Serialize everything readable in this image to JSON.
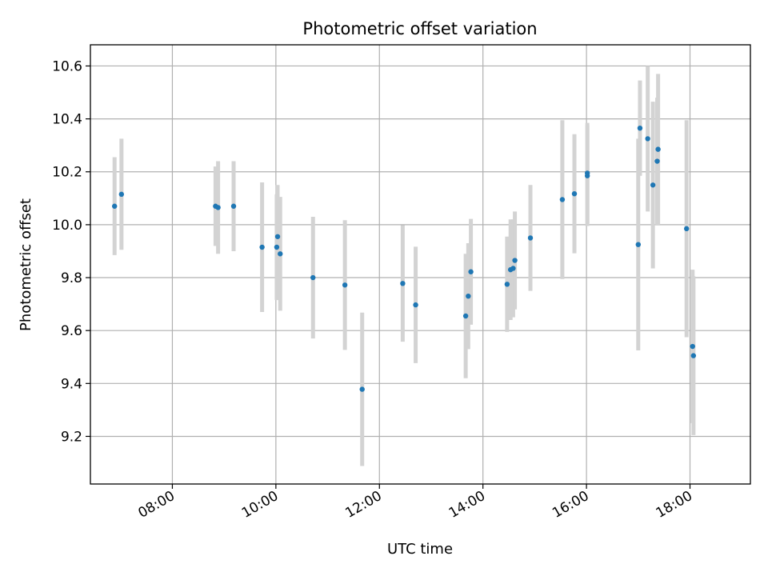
{
  "chart_data": {
    "type": "scatter",
    "title": "Photometric offset variation",
    "xlabel": "UTC time",
    "ylabel": "Photometric offset",
    "x_unit": "time (HH:MM)",
    "xlim": [
      "06:25",
      "19:10"
    ],
    "ylim": [
      9.02,
      10.68
    ],
    "x_ticks": [
      "08:00",
      "10:00",
      "12:00",
      "14:00",
      "16:00",
      "18:00"
    ],
    "y_ticks": [
      9.2,
      9.4,
      9.6,
      9.8,
      10.0,
      10.2,
      10.4,
      10.6
    ],
    "grid": true,
    "legend": "none",
    "colors": {
      "point": "#1f77b4",
      "errorbar": "#d3d3d3",
      "grid": "#b0b0b0"
    },
    "points": [
      {
        "x": "06:53",
        "y": 10.07,
        "err": 0.185
      },
      {
        "x": "07:01",
        "y": 10.115,
        "err": 0.21
      },
      {
        "x": "08:50",
        "y": 10.07,
        "err": 0.15
      },
      {
        "x": "08:53",
        "y": 10.065,
        "err": 0.175
      },
      {
        "x": "09:11",
        "y": 10.07,
        "err": 0.17
      },
      {
        "x": "09:44",
        "y": 9.915,
        "err": 0.245
      },
      {
        "x": "10:01",
        "y": 9.915,
        "err": 0.2
      },
      {
        "x": "10:02",
        "y": 9.955,
        "err": 0.195
      },
      {
        "x": "10:05",
        "y": 9.89,
        "err": 0.215
      },
      {
        "x": "10:43",
        "y": 9.8,
        "err": 0.23
      },
      {
        "x": "11:20",
        "y": 9.772,
        "err": 0.245
      },
      {
        "x": "11:40",
        "y": 9.378,
        "err": 0.29
      },
      {
        "x": "12:27",
        "y": 9.778,
        "err": 0.22
      },
      {
        "x": "12:42",
        "y": 9.697,
        "err": 0.22
      },
      {
        "x": "13:40",
        "y": 9.655,
        "err": 0.235
      },
      {
        "x": "13:43",
        "y": 9.73,
        "err": 0.2
      },
      {
        "x": "13:46",
        "y": 9.822,
        "err": 0.2
      },
      {
        "x": "14:28",
        "y": 9.775,
        "err": 0.18
      },
      {
        "x": "14:32",
        "y": 9.83,
        "err": 0.19
      },
      {
        "x": "14:35",
        "y": 9.835,
        "err": 0.185
      },
      {
        "x": "14:37",
        "y": 9.865,
        "err": 0.185
      },
      {
        "x": "14:55",
        "y": 9.95,
        "err": 0.2
      },
      {
        "x": "15:32",
        "y": 10.095,
        "err": 0.3
      },
      {
        "x": "15:46",
        "y": 10.117,
        "err": 0.225
      },
      {
        "x": "16:01",
        "y": 10.185,
        "err": 0.19
      },
      {
        "x": "16:01",
        "y": 10.195,
        "err": 0.19
      },
      {
        "x": "17:00",
        "y": 9.925,
        "err": 0.4
      },
      {
        "x": "17:02",
        "y": 10.365,
        "err": 0.18
      },
      {
        "x": "17:11",
        "y": 10.325,
        "err": 0.275
      },
      {
        "x": "17:17",
        "y": 10.15,
        "err": 0.315
      },
      {
        "x": "17:22",
        "y": 10.24,
        "err": 0.24
      },
      {
        "x": "17:23",
        "y": 10.285,
        "err": 0.285
      },
      {
        "x": "17:56",
        "y": 9.985,
        "err": 0.41
      },
      {
        "x": "18:03",
        "y": 9.54,
        "err": 0.29
      },
      {
        "x": "18:04",
        "y": 9.505,
        "err": 0.3
      }
    ]
  }
}
